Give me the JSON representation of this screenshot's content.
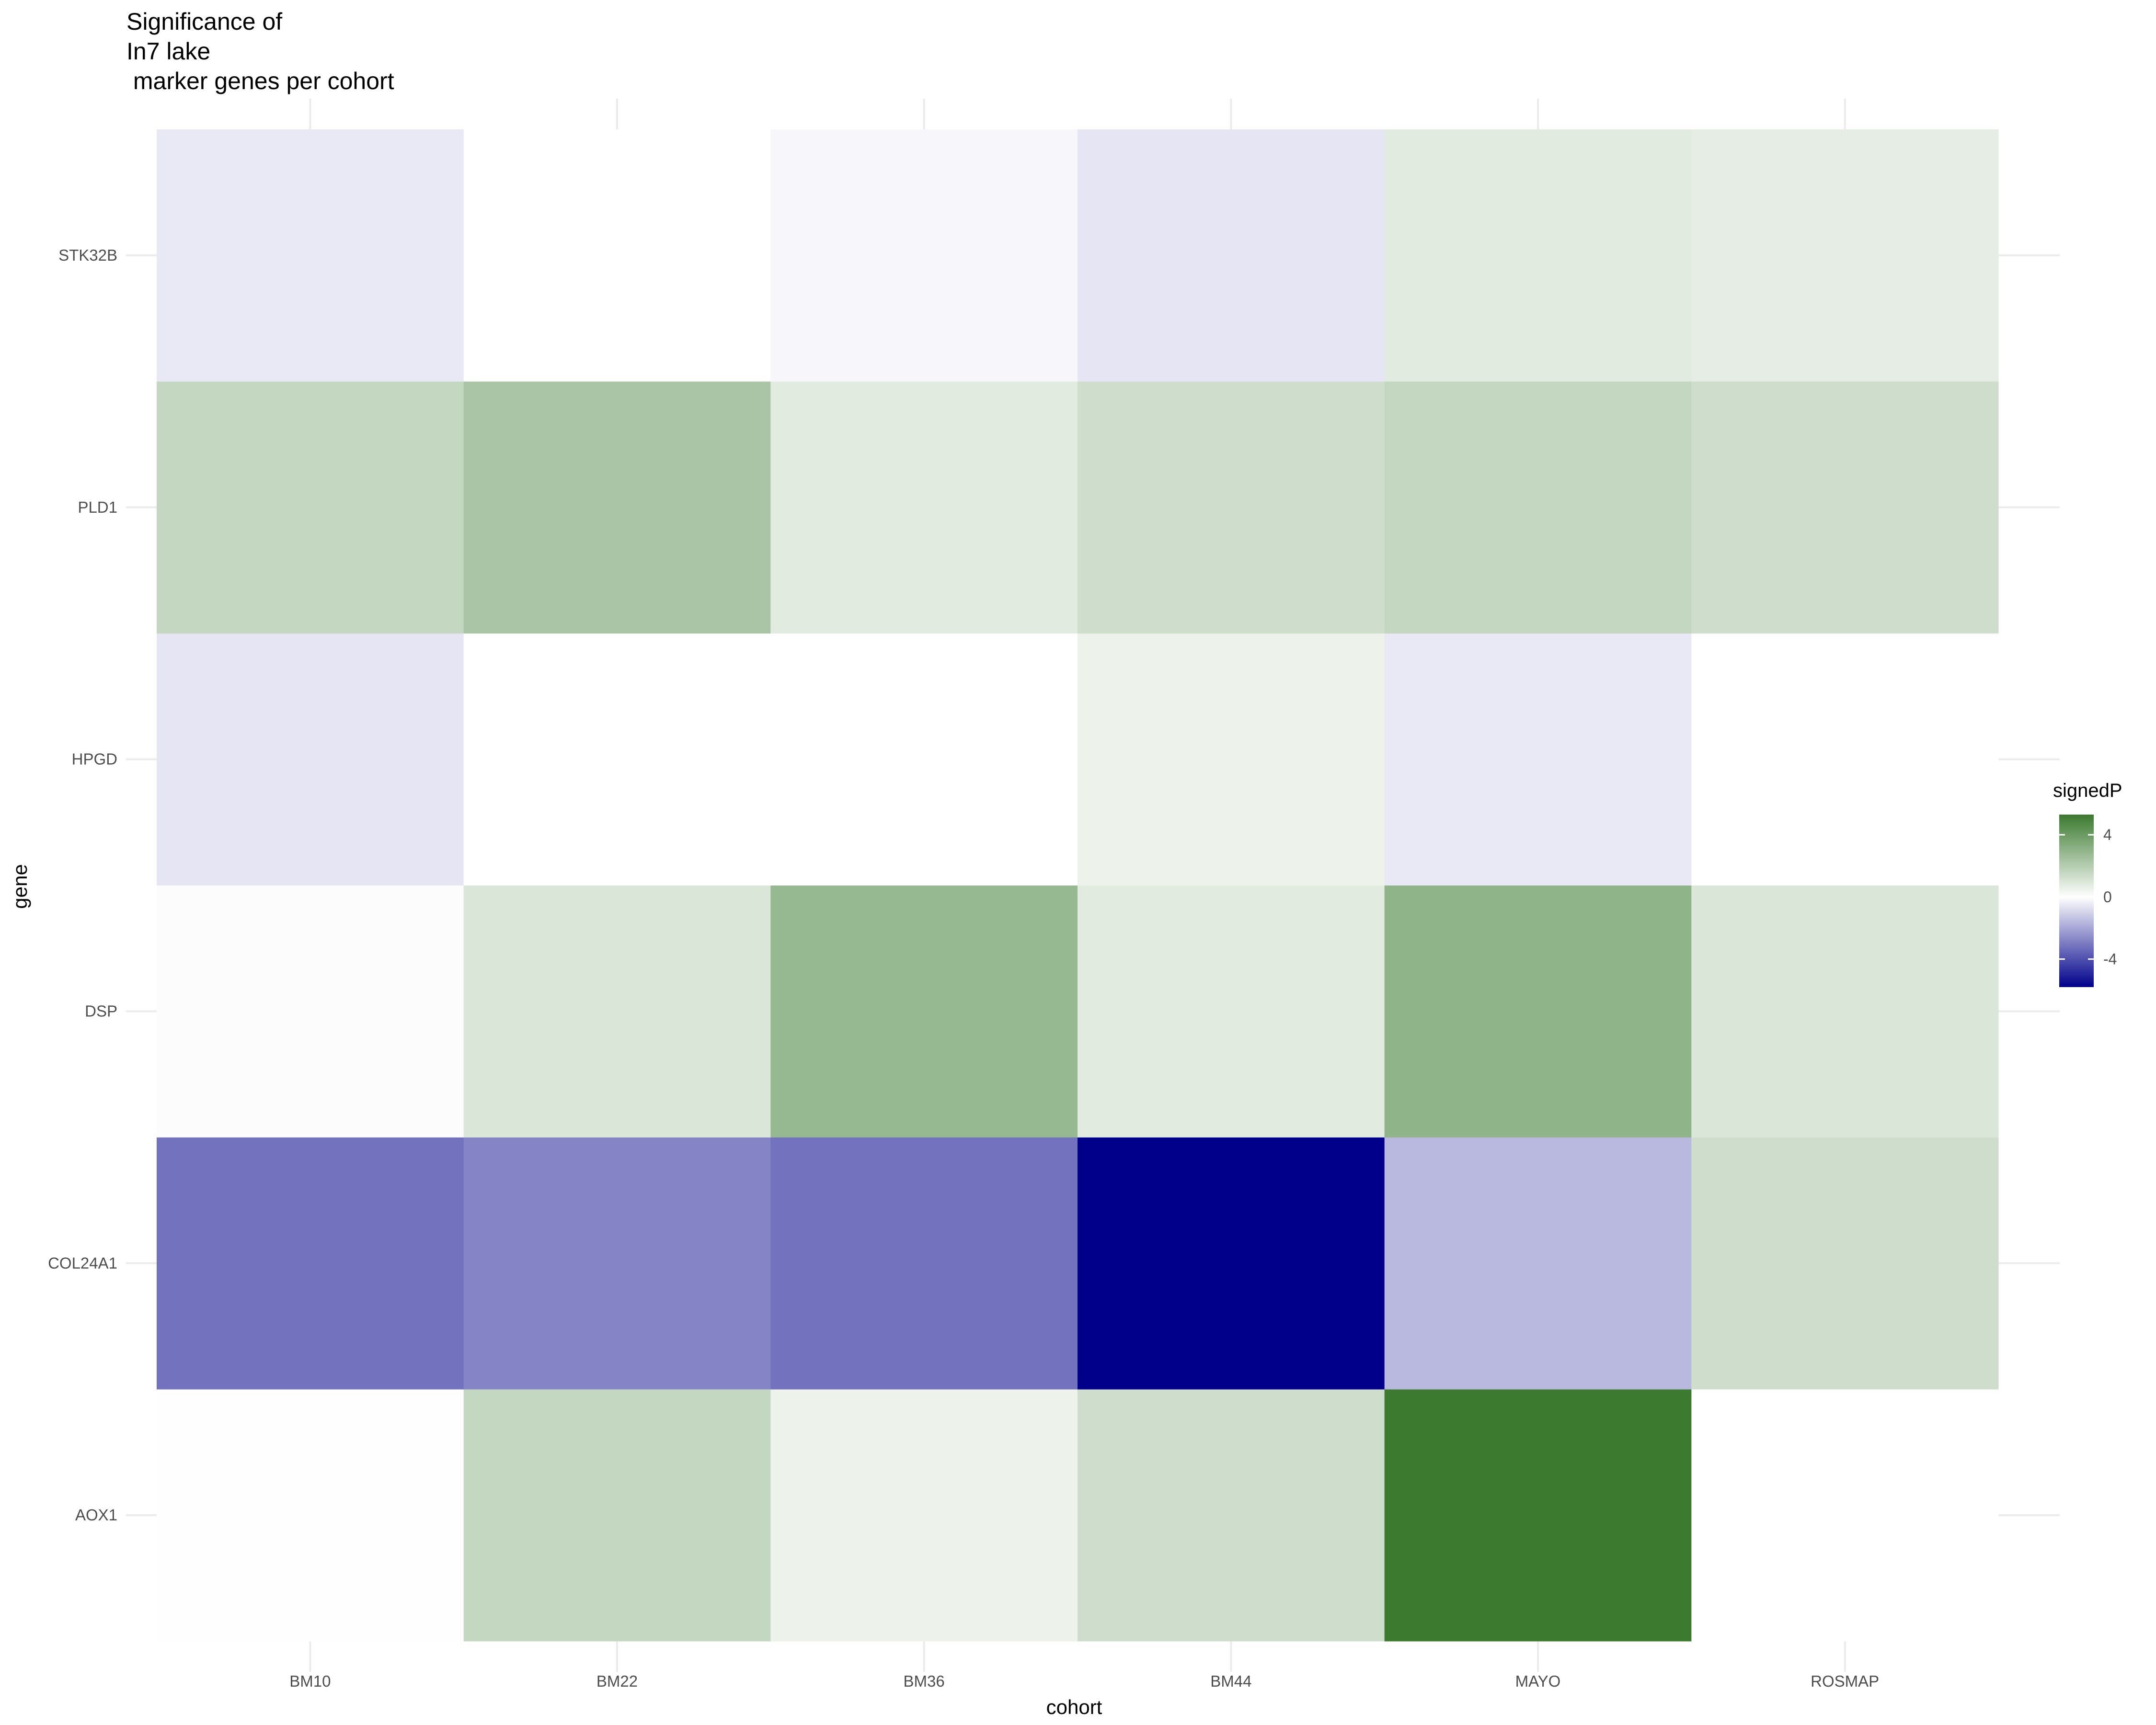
{
  "chart_data": {
    "type": "heatmap",
    "title_lines": [
      "Significance of",
      "In7 lake",
      " marker genes per cohort"
    ],
    "xlabel": "cohort",
    "ylabel": "gene",
    "x_categories": [
      "BM10",
      "BM22",
      "BM36",
      "BM44",
      "MAYO",
      "ROSMAP"
    ],
    "y_categories": [
      "AOX1",
      "COL24A1",
      "DSP",
      "HPGD",
      "PLD1",
      "STK32B"
    ],
    "values": {
      "STK32B": {
        "BM10": -0.5,
        "BM22": 0.0,
        "BM36": -0.2,
        "BM44": -0.6,
        "MAYO": 0.8,
        "ROSMAP": 0.7
      },
      "PLD1": {
        "BM10": 1.6,
        "BM22": 2.3,
        "BM36": 0.8,
        "BM44": 1.3,
        "MAYO": 1.6,
        "ROSMAP": 1.3
      },
      "HPGD": {
        "BM10": -0.6,
        "BM22": 0.0,
        "BM36": 0.0,
        "BM44": 0.5,
        "MAYO": -0.5,
        "ROSMAP": 0.0
      },
      "DSP": {
        "BM10": 0.1,
        "BM22": 1.0,
        "BM36": 2.8,
        "BM44": 0.8,
        "MAYO": 3.0,
        "ROSMAP": 1.0
      },
      "COL24A1": {
        "BM10": -3.2,
        "BM22": -2.8,
        "BM36": -3.2,
        "BM44": -5.8,
        "MAYO": -1.6,
        "ROSMAP": 1.3
      },
      "AOX1": {
        "BM10": 0.05,
        "BM22": 1.6,
        "BM36": 0.5,
        "BM44": 1.3,
        "MAYO": 5.3,
        "ROSMAP": 0.0
      }
    },
    "legend": {
      "title": "signedP",
      "position": "right",
      "range": [
        -5.8,
        5.3
      ],
      "breaks": [
        4,
        0,
        -4
      ],
      "colors": {
        "low": "#00008b",
        "mid": "#ffffff",
        "high": "#3b7a2f"
      }
    },
    "grid": true
  }
}
